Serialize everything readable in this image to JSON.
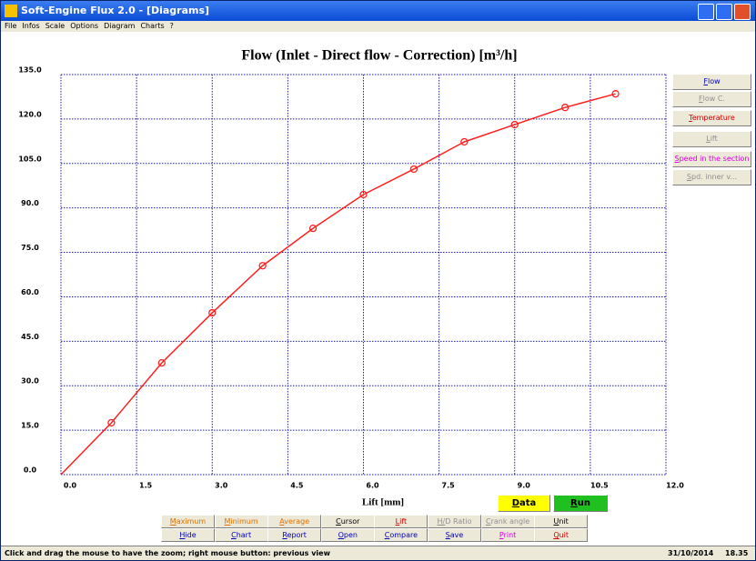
{
  "window": {
    "title": "Soft-Engine Flux 2.0 - [Diagrams]"
  },
  "menu": [
    "File",
    "Infos",
    "Scale",
    "Options",
    "Diagram",
    "Charts",
    "?"
  ],
  "chart_data": {
    "type": "line",
    "title": "Flow (Inlet - Direct flow - Correction) [m³/h]",
    "x_label": "Lift [mm]",
    "x": [
      0,
      1,
      2,
      3,
      4,
      5,
      6,
      7,
      8,
      9,
      10,
      11
    ],
    "values": [
      0,
      17.5,
      37.7,
      54.6,
      70.5,
      83.1,
      94.5,
      103.1,
      112.3,
      118.1,
      123.9,
      128.5
    ],
    "color": "#ff2020",
    "xlim": [
      0,
      12
    ],
    "ylim": [
      0,
      135
    ],
    "xticks": [
      {
        "value": 0,
        "label": "0.0"
      },
      1.5,
      {
        "value": 3,
        "label": "3.0"
      },
      4.5,
      {
        "value": 6,
        "label": "6.0"
      },
      7.5,
      {
        "value": 9,
        "label": "9.0"
      },
      10.5,
      {
        "value": 12,
        "label": "12.0"
      }
    ],
    "yticks": [
      {
        "value": 0,
        "label": "0.0"
      },
      {
        "value": 15,
        "label": "15.0"
      },
      {
        "value": 30,
        "label": "30.0"
      },
      {
        "value": 45,
        "label": "45.0"
      },
      {
        "value": 60,
        "label": "60.0"
      },
      {
        "value": 75,
        "label": "75.0"
      },
      {
        "value": 90,
        "label": "90.0"
      },
      {
        "value": 105,
        "label": "105.0"
      },
      {
        "value": 120,
        "label": "120.0"
      },
      {
        "value": 135,
        "label": "135.0"
      }
    ],
    "grid": true
  },
  "side_buttons": [
    "Flow",
    "Flow C.",
    "Temperature",
    "Lift",
    "Speed in the section",
    "Spd. inner v..."
  ],
  "action_buttons": {
    "data": "Data",
    "run": "Run"
  },
  "bottom_buttons": [
    [
      "Maximum",
      "Minimum",
      "Average",
      "Cursor",
      "Lift",
      "H/D Ratio",
      "Crank angle",
      "Unit"
    ],
    [
      "Hide",
      "Chart",
      "Report",
      "Open",
      "Compare",
      "Save",
      "Print",
      "Quit"
    ]
  ],
  "status": {
    "message": "Click and drag the mouse to have the zoom; right mouse button: previous view",
    "date": "31/10/2014",
    "time": "18.35"
  }
}
